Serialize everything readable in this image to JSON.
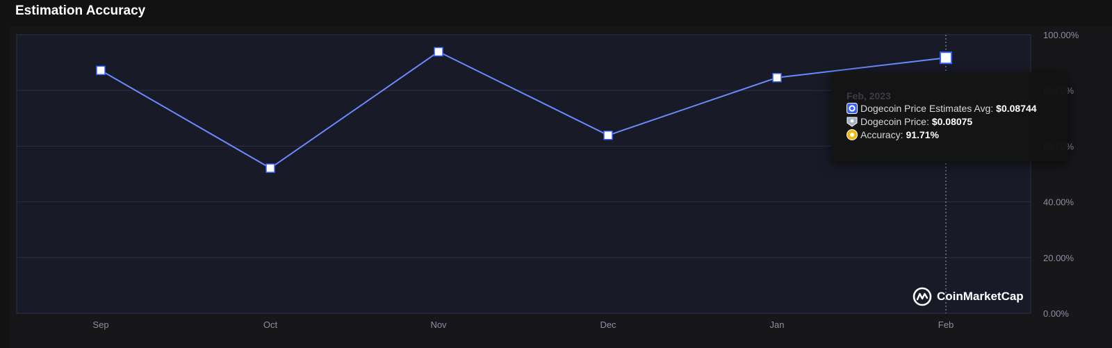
{
  "header": {
    "title": "Estimation Accuracy"
  },
  "chart_data": {
    "type": "line",
    "title": "Estimation Accuracy",
    "categories": [
      "Sep",
      "Oct",
      "Nov",
      "Dec",
      "Jan",
      "Feb"
    ],
    "series": [
      {
        "name": "Accuracy",
        "values": [
          87.2,
          52.1,
          93.9,
          63.9,
          84.6,
          91.71
        ],
        "color": "#6a8bff"
      }
    ],
    "ylim": [
      0,
      100
    ],
    "y_ticks": [
      "0.00%",
      "20.00%",
      "40.00%",
      "60.00%",
      "80.00%",
      "100.00%"
    ],
    "y_tick_values": [
      0,
      20,
      40,
      60,
      80,
      100
    ],
    "grid": true,
    "highlighted_category": "Feb"
  },
  "tooltip": {
    "date": "Feb, 2023",
    "estimate_label": "Dogecoin Price Estimates Avg:",
    "estimate_value": "$0.08744",
    "price_label": "Dogecoin Price:",
    "price_value": "$0.08075",
    "accuracy_label": "Accuracy:",
    "accuracy_value": "91.71%"
  },
  "watermark": {
    "text": "CoinMarketCap"
  },
  "colors": {
    "background": "#121212",
    "plot": "#181a27",
    "grid": "#2c3047",
    "line": "#6a8bff",
    "estimate_icon": "#3861fb",
    "price_icon": "#a6b0c3",
    "accuracy_icon": "#f0b90b"
  }
}
